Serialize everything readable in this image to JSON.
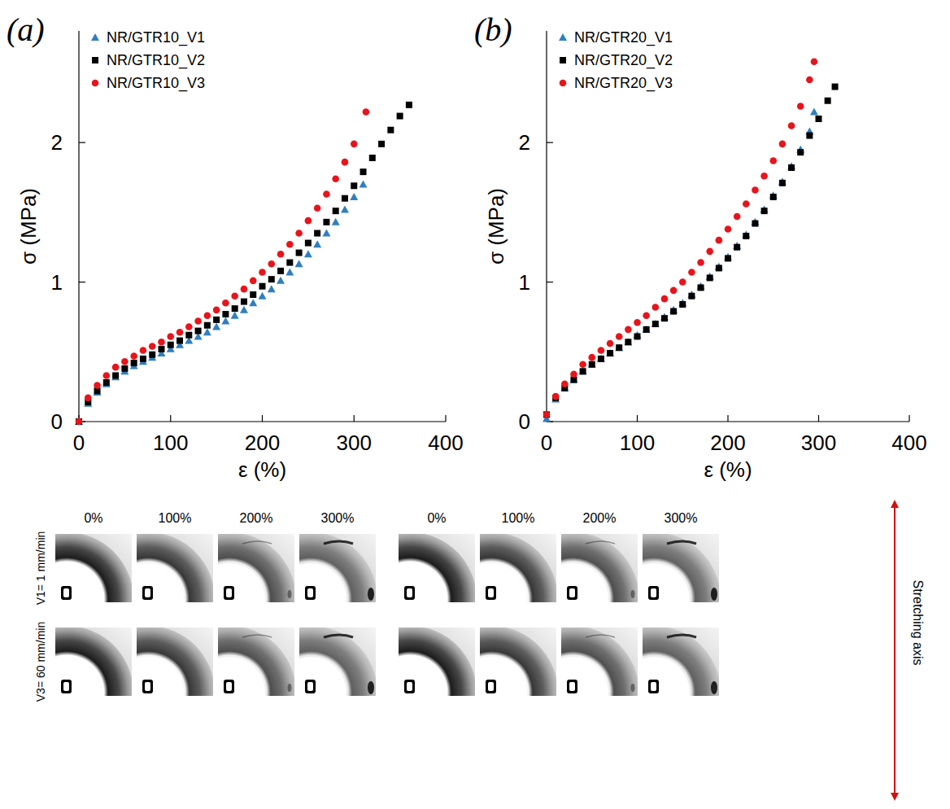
{
  "chart_data": [
    {
      "type": "scatter",
      "title": "(a)",
      "x_label": "ε (%)",
      "y_label": "σ (MPa)",
      "xlim": [
        0,
        400
      ],
      "xticks": [
        0,
        100,
        200,
        300,
        400
      ],
      "ylim": [
        0,
        2.8
      ],
      "yticks": [
        0,
        1,
        2
      ],
      "grid": false,
      "legend": "upper left",
      "series": [
        {
          "name": "NR/GTR10_V1",
          "color": "#2f7fc1",
          "marker": "triangle",
          "x": [
            0,
            10,
            20,
            30,
            40,
            50,
            60,
            70,
            80,
            90,
            100,
            110,
            120,
            130,
            140,
            150,
            160,
            170,
            180,
            190,
            200,
            210,
            220,
            230,
            240,
            250,
            260,
            270,
            280,
            290,
            300,
            310
          ],
          "values": [
            0,
            0.13,
            0.21,
            0.27,
            0.32,
            0.36,
            0.4,
            0.43,
            0.46,
            0.49,
            0.52,
            0.55,
            0.58,
            0.61,
            0.64,
            0.68,
            0.72,
            0.76,
            0.8,
            0.85,
            0.9,
            0.95,
            1.01,
            1.07,
            1.13,
            1.2,
            1.27,
            1.35,
            1.43,
            1.52,
            1.61,
            1.7
          ]
        },
        {
          "name": "NR/GTR10_V2",
          "color": "#000000",
          "marker": "square",
          "x": [
            0,
            10,
            20,
            30,
            40,
            50,
            60,
            70,
            80,
            90,
            100,
            110,
            120,
            130,
            140,
            150,
            160,
            170,
            180,
            190,
            200,
            210,
            220,
            230,
            240,
            250,
            260,
            270,
            280,
            290,
            300,
            310,
            320,
            330,
            340,
            350,
            360
          ],
          "values": [
            0,
            0.14,
            0.22,
            0.28,
            0.33,
            0.38,
            0.42,
            0.45,
            0.48,
            0.52,
            0.55,
            0.58,
            0.62,
            0.65,
            0.69,
            0.73,
            0.77,
            0.81,
            0.86,
            0.91,
            0.97,
            1.02,
            1.08,
            1.14,
            1.21,
            1.28,
            1.35,
            1.43,
            1.51,
            1.6,
            1.69,
            1.79,
            1.89,
            1.99,
            2.09,
            2.19,
            2.27
          ]
        },
        {
          "name": "NR/GTR10_V3",
          "color": "#e8141b",
          "marker": "circle",
          "x": [
            0,
            10,
            20,
            30,
            40,
            50,
            60,
            70,
            80,
            90,
            100,
            110,
            120,
            130,
            140,
            150,
            160,
            170,
            180,
            190,
            200,
            210,
            220,
            230,
            240,
            250,
            260,
            270,
            280,
            290,
            300,
            313
          ],
          "values": [
            0,
            0.17,
            0.26,
            0.33,
            0.39,
            0.43,
            0.47,
            0.51,
            0.54,
            0.57,
            0.61,
            0.64,
            0.68,
            0.72,
            0.76,
            0.8,
            0.85,
            0.9,
            0.95,
            1.01,
            1.07,
            1.13,
            1.2,
            1.27,
            1.35,
            1.44,
            1.53,
            1.63,
            1.74,
            1.86,
            1.99,
            2.22
          ]
        }
      ]
    },
    {
      "type": "scatter",
      "title": "(b)",
      "x_label": "ε (%)",
      "y_label": "σ (MPa)",
      "xlim": [
        0,
        400
      ],
      "xticks": [
        0,
        100,
        200,
        300,
        400
      ],
      "ylim": [
        0,
        2.8
      ],
      "yticks": [
        0,
        1,
        2
      ],
      "grid": false,
      "legend": "upper left",
      "series": [
        {
          "name": "NR/GTR20_V1",
          "color": "#2f7fc1",
          "marker": "triangle",
          "x": [
            0,
            10,
            20,
            30,
            40,
            50,
            60,
            70,
            80,
            90,
            100,
            110,
            120,
            130,
            140,
            150,
            160,
            170,
            180,
            190,
            200,
            210,
            220,
            230,
            240,
            250,
            260,
            270,
            280,
            290,
            295
          ],
          "values": [
            0.02,
            0.16,
            0.24,
            0.3,
            0.36,
            0.41,
            0.45,
            0.49,
            0.53,
            0.57,
            0.62,
            0.66,
            0.7,
            0.75,
            0.8,
            0.85,
            0.91,
            0.97,
            1.04,
            1.11,
            1.18,
            1.26,
            1.34,
            1.43,
            1.52,
            1.62,
            1.72,
            1.83,
            1.95,
            2.08,
            2.22
          ]
        },
        {
          "name": "NR/GTR20_V2",
          "color": "#000000",
          "marker": "square",
          "x": [
            0,
            10,
            20,
            30,
            40,
            50,
            60,
            70,
            80,
            90,
            100,
            110,
            120,
            130,
            140,
            150,
            160,
            170,
            180,
            190,
            200,
            210,
            220,
            230,
            240,
            250,
            260,
            270,
            280,
            290,
            300,
            310,
            318
          ],
          "values": [
            0.05,
            0.17,
            0.24,
            0.3,
            0.36,
            0.41,
            0.45,
            0.49,
            0.53,
            0.57,
            0.61,
            0.66,
            0.7,
            0.74,
            0.79,
            0.84,
            0.9,
            0.96,
            1.03,
            1.1,
            1.17,
            1.25,
            1.33,
            1.42,
            1.51,
            1.61,
            1.71,
            1.82,
            1.93,
            2.05,
            2.17,
            2.3,
            2.4
          ]
        },
        {
          "name": "NR/GTR20_V3",
          "color": "#e8141b",
          "marker": "circle",
          "x": [
            0,
            10,
            20,
            30,
            40,
            50,
            60,
            70,
            80,
            90,
            100,
            110,
            120,
            130,
            140,
            150,
            160,
            170,
            180,
            190,
            200,
            210,
            220,
            230,
            240,
            250,
            260,
            270,
            280,
            290,
            295
          ],
          "values": [
            0.05,
            0.18,
            0.27,
            0.34,
            0.41,
            0.46,
            0.51,
            0.56,
            0.61,
            0.66,
            0.71,
            0.76,
            0.82,
            0.88,
            0.94,
            1.0,
            1.07,
            1.14,
            1.22,
            1.3,
            1.38,
            1.47,
            1.56,
            1.66,
            1.76,
            1.87,
            1.99,
            2.12,
            2.26,
            2.45,
            2.58
          ]
        }
      ]
    }
  ],
  "figure": {
    "columns": [
      "0%",
      "100%",
      "200%",
      "300%"
    ],
    "rows": [
      "V1= 1 mm/min",
      "V3= 60 mm/min"
    ],
    "axis_label": "Stretching axis"
  }
}
